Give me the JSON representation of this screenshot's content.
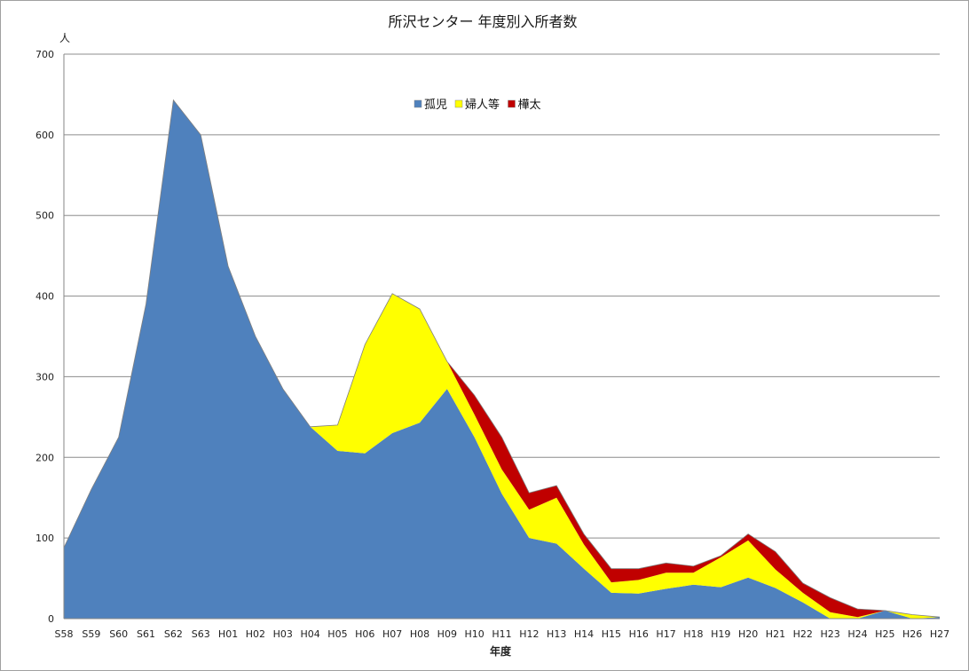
{
  "chart_data": {
    "type": "area",
    "stacked": true,
    "title": "所沢センター 年度別入所者数",
    "ylabel_unit": "人",
    "xlabel": "年度",
    "ylim": [
      0,
      700
    ],
    "yticks": [
      0,
      100,
      200,
      300,
      400,
      500,
      600,
      700
    ],
    "grid": true,
    "legend_position": "top-center",
    "categories": [
      "S58",
      "S59",
      "S60",
      "S61",
      "S62",
      "S63",
      "H01",
      "H02",
      "H03",
      "H04",
      "H05",
      "H06",
      "H07",
      "H08",
      "H09",
      "H10",
      "H11",
      "H12",
      "H13",
      "H14",
      "H15",
      "H16",
      "H17",
      "H18",
      "H19",
      "H20",
      "H21",
      "H22",
      "H23",
      "H24",
      "H25",
      "H26",
      "H27"
    ],
    "series": [
      {
        "name": "孤児",
        "color": "#4f81bd",
        "values": [
          88,
          160,
          225,
          390,
          643,
          600,
          437,
          350,
          285,
          238,
          208,
          205,
          230,
          243,
          285,
          225,
          155,
          100,
          93,
          62,
          32,
          31,
          37,
          42,
          39,
          51,
          38,
          20,
          0,
          0,
          10,
          0,
          2
        ]
      },
      {
        "name": "婦人等",
        "color": "#ffff00",
        "values": [
          0,
          0,
          0,
          0,
          0,
          0,
          0,
          0,
          0,
          0,
          32,
          135,
          173,
          141,
          34,
          28,
          30,
          35,
          57,
          30,
          13,
          17,
          20,
          15,
          37,
          46,
          23,
          12,
          8,
          2,
          0,
          5,
          0
        ]
      },
      {
        "name": "樺太",
        "color": "#c00000",
        "values": [
          0,
          0,
          0,
          0,
          0,
          0,
          0,
          0,
          0,
          0,
          0,
          0,
          0,
          0,
          0,
          24,
          40,
          21,
          15,
          13,
          17,
          14,
          12,
          8,
          2,
          8,
          22,
          12,
          18,
          10,
          0,
          0,
          0
        ]
      }
    ]
  }
}
